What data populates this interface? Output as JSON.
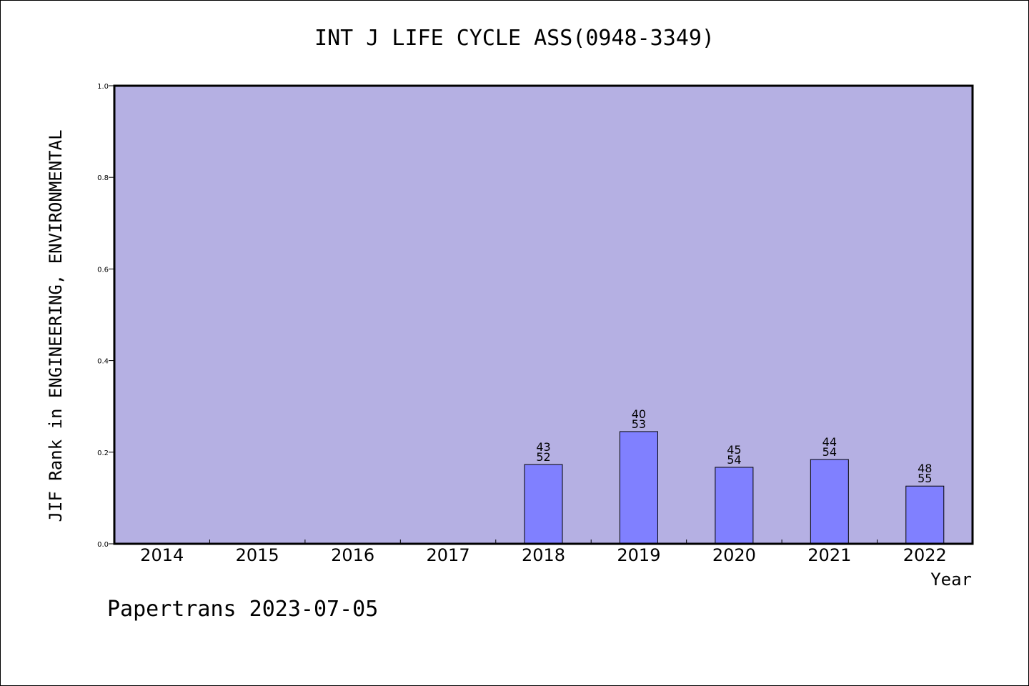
{
  "chart_data": {
    "type": "bar",
    "title": "INT J LIFE CYCLE ASS(0948-3349)",
    "xlabel": "Year",
    "ylabel": "JIF Rank in ENGINEERING, ENVIRONMENTAL",
    "ylim": [
      0,
      1.0
    ],
    "yticks": [
      "0.0",
      "0.2",
      "0.4",
      "0.6",
      "0.8",
      "1.0"
    ],
    "categories": [
      "2014",
      "2015",
      "2016",
      "2017",
      "2018",
      "2019",
      "2020",
      "2021",
      "2022"
    ],
    "values": [
      null,
      null,
      null,
      null,
      0.173,
      0.245,
      0.167,
      0.184,
      0.126
    ],
    "bar_labels": [
      null,
      null,
      null,
      null,
      [
        "43",
        "52"
      ],
      [
        "40",
        "53"
      ],
      [
        "45",
        "54"
      ],
      [
        "44",
        "54"
      ],
      [
        "48",
        "55"
      ]
    ],
    "colors": {
      "plot_background": "#b5b0e3",
      "bar_fill": "#8080ff",
      "bar_stroke": "#000000",
      "axis": "#000000"
    },
    "grid": false,
    "legend": "none"
  },
  "footer": "Papertrans 2023-07-05"
}
